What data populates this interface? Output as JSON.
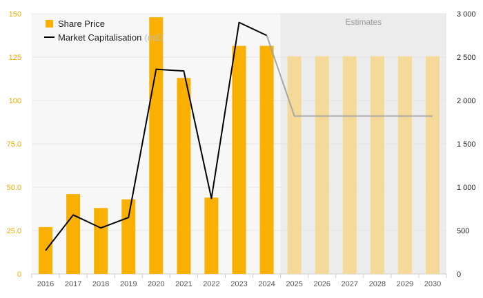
{
  "chart_data": {
    "type": "bar",
    "categories": [
      "2016",
      "2017",
      "2018",
      "2019",
      "2020",
      "2021",
      "2022",
      "2023",
      "2024",
      "2025",
      "2026",
      "2027",
      "2028",
      "2029",
      "2030"
    ],
    "estimate_region_label": "Estimates",
    "estimate_from": "2025",
    "series": [
      {
        "name": "Share Price",
        "type": "bar",
        "axis": "left",
        "color": "#f9b000",
        "estimate_color": "#f5d998",
        "values": [
          27,
          46,
          38,
          43,
          148,
          113,
          44,
          131.5,
          131.5,
          125.5,
          125.5,
          125.5,
          125.5,
          125.5,
          125.5
        ]
      },
      {
        "name": "Market Capitalisation",
        "unit_label": "(m£)",
        "type": "line",
        "axis": "right",
        "color": "#000000",
        "estimate_color": "#a6a6a6",
        "values": [
          270,
          680,
          530,
          650,
          2360,
          2340,
          870,
          2900,
          2750,
          1820,
          1820,
          1820,
          1820,
          1820,
          1820
        ]
      }
    ],
    "left_axis": {
      "ticks": [
        "0",
        "25.0",
        "50.0",
        "75.0",
        "100",
        "125",
        "150"
      ],
      "ylim": [
        0,
        150
      ],
      "color": "#f2a900"
    },
    "right_axis": {
      "ticks": [
        "0",
        "500",
        "1 000",
        "1 500",
        "2 000",
        "2 500",
        "3 000"
      ],
      "ylim": [
        0,
        3000
      ]
    },
    "grid": true,
    "legend_position": "top-left"
  }
}
